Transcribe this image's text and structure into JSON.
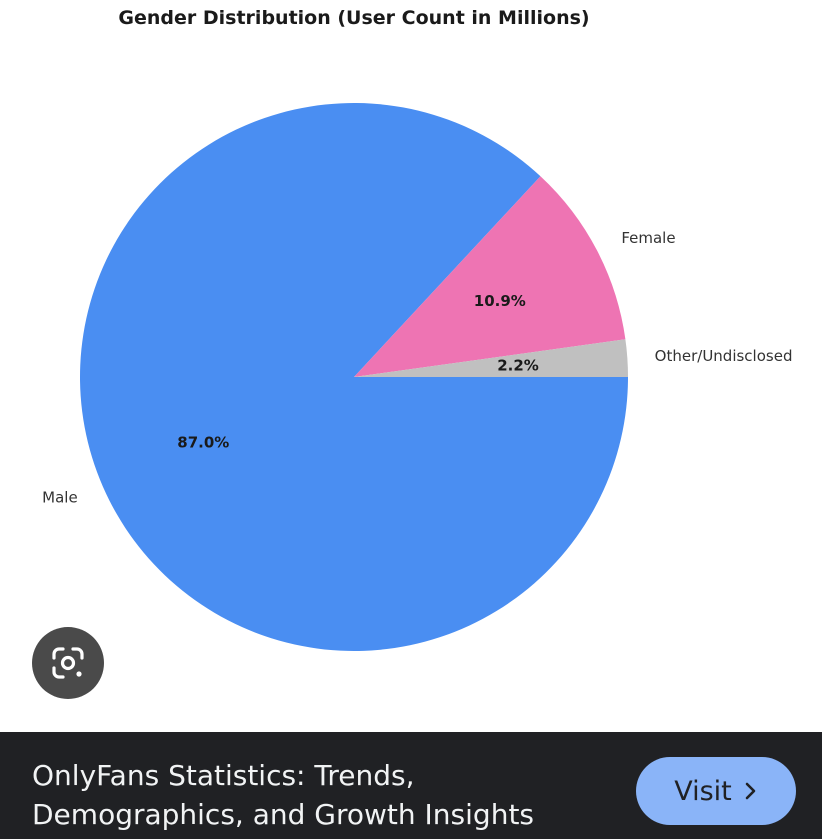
{
  "chart_data": {
    "type": "pie",
    "title": "Gender Distribution (User Count in Millions)",
    "slices": [
      {
        "label": "Male",
        "value": 87.0,
        "pct_label": "87.0%",
        "color": "#4a8ef2"
      },
      {
        "label": "Female",
        "value": 10.9,
        "pct_label": "10.9%",
        "color": "#ee74b3"
      },
      {
        "label": "Other/Undisclosed",
        "value": 2.2,
        "pct_label": "2.2%",
        "color": "#c0c0c0"
      }
    ],
    "start_angle_deg": 0,
    "direction": "clockwise"
  },
  "overlay": {
    "lens_icon": "google-lens-icon"
  },
  "result": {
    "title": "OnlyFans Statistics: Trends, Demographics, and Growth Insights",
    "visit_label": "Visit",
    "visit_icon": "chevron-right-icon",
    "accent_color": "#8ab4f8"
  }
}
